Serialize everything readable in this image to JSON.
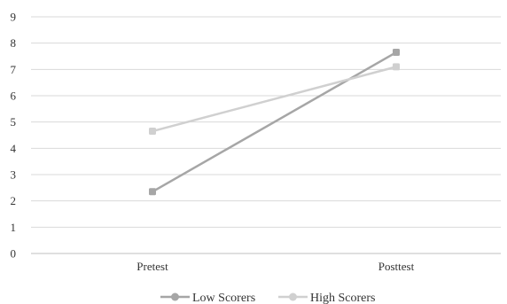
{
  "chart_data": {
    "type": "line",
    "categories": [
      "Pretest",
      "Posttest"
    ],
    "ylim": [
      0,
      9
    ],
    "yticks": [
      0,
      1,
      2,
      3,
      4,
      5,
      6,
      7,
      8,
      9
    ],
    "grid": true,
    "legend": "bottom",
    "series": [
      {
        "name": "Low Scorers",
        "values": [
          2.35,
          7.65
        ],
        "color": "#a6a6a6",
        "marker": "square"
      },
      {
        "name": "High Scorers",
        "values": [
          4.65,
          7.1
        ],
        "color": "#d0d0d0",
        "marker": "square"
      }
    ]
  }
}
